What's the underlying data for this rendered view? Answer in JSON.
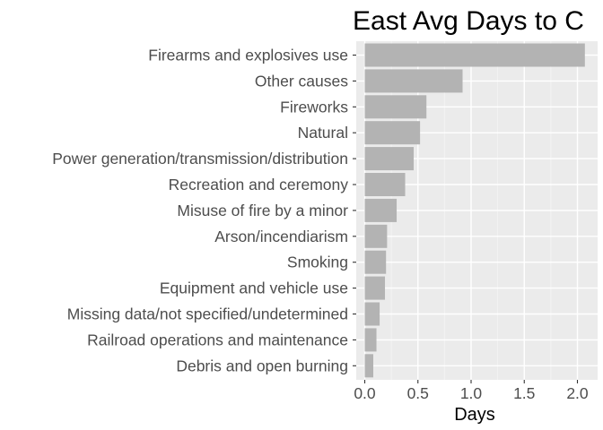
{
  "chart_data": {
    "type": "bar",
    "orientation": "horizontal",
    "title": "East Avg Days to C",
    "xlabel": "Days",
    "ylabel": "",
    "xlim": [
      0,
      2.2
    ],
    "x_ticks": [
      "0.0",
      "0.5",
      "1.0",
      "1.5",
      "2.0"
    ],
    "grid": true,
    "categories": [
      "Firearms and explosives use",
      "Other causes",
      "Fireworks",
      "Natural",
      "Power generation/transmission/distribution",
      "Recreation and ceremony",
      "Misuse of fire by a minor",
      "Arson/incendiarism",
      "Smoking",
      "Equipment and vehicle use",
      "Missing data/not specified/undetermined",
      "Railroad operations and maintenance",
      "Debris and open burning"
    ],
    "values": [
      2.07,
      0.92,
      0.58,
      0.52,
      0.46,
      0.38,
      0.3,
      0.21,
      0.2,
      0.19,
      0.14,
      0.11,
      0.08
    ],
    "colors": {
      "bar": "#b3b3b3",
      "panel": "#ebebeb",
      "grid_major": "#ffffff",
      "grid_minor": "#f5f5f5",
      "text": "#4d4d4d",
      "tick": "#333333"
    }
  }
}
